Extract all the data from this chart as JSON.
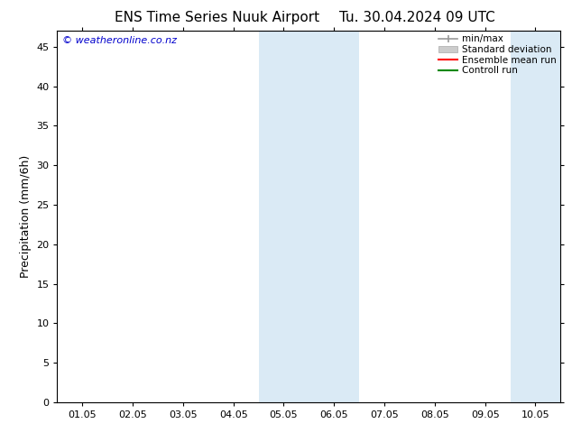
{
  "title_left": "ENS Time Series Nuuk Airport",
  "title_right": "Tu. 30.04.2024 09 UTC",
  "ylabel": "Precipitation (mm/6h)",
  "watermark": "© weatheronline.co.nz",
  "watermark_color": "#0000cc",
  "x_tick_labels": [
    "01.05",
    "02.05",
    "03.05",
    "04.05",
    "05.05",
    "06.05",
    "07.05",
    "08.05",
    "09.05",
    "10.05"
  ],
  "x_tick_positions": [
    0.5,
    1.5,
    2.5,
    3.5,
    4.5,
    5.5,
    6.5,
    7.5,
    8.5,
    9.5
  ],
  "x_min": 0,
  "x_max": 10,
  "y_min": 0,
  "y_max": 47,
  "y_ticks": [
    0,
    5,
    10,
    15,
    20,
    25,
    30,
    35,
    40,
    45
  ],
  "shaded_bands": [
    {
      "x_start": 4.0,
      "x_end": 5.0,
      "color": "#daeaf5"
    },
    {
      "x_start": 5.0,
      "x_end": 6.0,
      "color": "#daeaf5"
    },
    {
      "x_start": 9.0,
      "x_end": 10.0,
      "color": "#daeaf5"
    }
  ],
  "legend_entries": [
    {
      "label": "min/max",
      "type": "minmax",
      "color": "#999999"
    },
    {
      "label": "Standard deviation",
      "type": "stddev",
      "color": "#cccccc"
    },
    {
      "label": "Ensemble mean run",
      "type": "line",
      "color": "#ff0000",
      "linewidth": 1.5
    },
    {
      "label": "Controll run",
      "type": "line",
      "color": "#008800",
      "linewidth": 1.5
    }
  ],
  "background_color": "#ffffff",
  "axes_background_color": "#ffffff",
  "tick_fontsize": 8,
  "label_fontsize": 9,
  "title_fontsize": 11
}
